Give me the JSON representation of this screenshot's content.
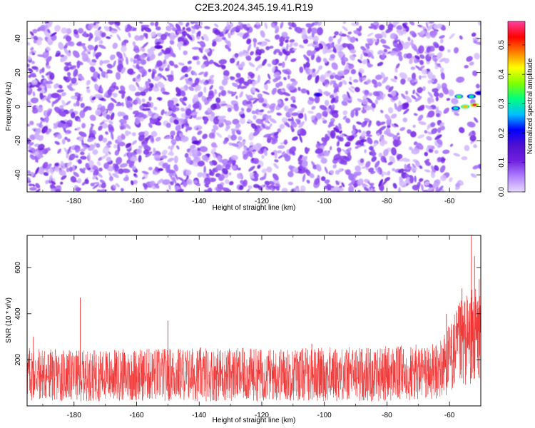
{
  "figure_title": "C2E3.2024.345.19.41.R19",
  "colors": {
    "spectrogram_background": "#ffffff",
    "snr_line": "#f03030",
    "axis": "#000000",
    "colorscale": [
      "#e8d8ff",
      "#b080ff",
      "#7020e0",
      "#5010d0",
      "#0000ff",
      "#00c0ff",
      "#00ff80",
      "#80ff00",
      "#ffff00",
      "#ff8000",
      "#ff0000",
      "#ff40a0"
    ]
  },
  "chart_data": [
    {
      "id": "spectrogram",
      "type": "heatmap",
      "title": "",
      "xlabel": "Height of straight line (km)",
      "ylabel": "Frequency (Hz)",
      "xlim": [
        -195,
        -50
      ],
      "ylim": [
        -50,
        50
      ],
      "xticks": [
        -180,
        -160,
        -140,
        -120,
        -100,
        -80,
        -60
      ],
      "yticks": [
        -40,
        -20,
        0,
        20,
        40
      ],
      "xtick_labels": [
        "-180",
        "-160",
        "-140",
        "-120",
        "-100",
        "-80",
        "-60"
      ],
      "ytick_labels": [
        "-40",
        "-20",
        "0",
        "20",
        "40"
      ],
      "colorbar": {
        "label": "Normalized spectral amplitude",
        "range": [
          0,
          0.58
        ],
        "ticks": [
          0.0,
          0.1,
          0.2,
          0.3,
          0.4,
          0.5
        ],
        "tick_labels": [
          "0.0",
          "0.1",
          "0.2",
          "0.3",
          "0.4",
          "0.5"
        ]
      },
      "noise_level_typical": 0.1,
      "strong_features": [
        {
          "x": -57,
          "y": 6,
          "value": 0.35
        },
        {
          "x": -53,
          "y": 6,
          "value": 0.3
        },
        {
          "x": -58,
          "y": -1,
          "value": 0.3
        },
        {
          "x": -55,
          "y": 0,
          "value": 0.45
        },
        {
          "x": -52,
          "y": 1,
          "value": 0.55
        },
        {
          "x": -50.5,
          "y": 8,
          "value": 0.2
        },
        {
          "x": -102,
          "y": 7,
          "value": 0.2
        },
        {
          "x": -153,
          "y": 35,
          "value": 0.15
        },
        {
          "x": -141,
          "y": -21,
          "value": 0.15
        }
      ]
    },
    {
      "id": "snr",
      "type": "line",
      "title": "",
      "xlabel": "Height of straight line (km)",
      "ylabel": "SNR (10 * v/v)",
      "xlim": [
        -195,
        -50
      ],
      "ylim": [
        0,
        740
      ],
      "xticks": [
        -180,
        -160,
        -140,
        -120,
        -100,
        -80,
        -60
      ],
      "yticks": [
        200,
        400,
        600
      ],
      "xtick_labels": [
        "-180",
        "-160",
        "-140",
        "-120",
        "-100",
        "-80",
        "-60"
      ],
      "ytick_labels": [
        "200",
        "400",
        "600"
      ],
      "baseline_mean": 120,
      "baseline_peak_typical": 230,
      "notable_peaks": [
        {
          "x": -193,
          "y": 300
        },
        {
          "x": -178,
          "y": 470
        },
        {
          "x": -150,
          "y": 370
        },
        {
          "x": -104,
          "y": 270
        },
        {
          "x": -61,
          "y": 400
        },
        {
          "x": -56,
          "y": 510
        },
        {
          "x": -53,
          "y": 740
        },
        {
          "x": -52,
          "y": 650
        },
        {
          "x": -50.5,
          "y": 550
        }
      ],
      "envelope": [
        {
          "x": -195,
          "y_max": 260
        },
        {
          "x": -180,
          "y_max": 240
        },
        {
          "x": -160,
          "y_max": 250
        },
        {
          "x": -140,
          "y_max": 255
        },
        {
          "x": -120,
          "y_max": 250
        },
        {
          "x": -100,
          "y_max": 255
        },
        {
          "x": -80,
          "y_max": 260
        },
        {
          "x": -64,
          "y_max": 270
        },
        {
          "x": -60,
          "y_max": 360
        },
        {
          "x": -56,
          "y_max": 470
        },
        {
          "x": -52,
          "y_max": 520
        },
        {
          "x": -50,
          "y_max": 480
        }
      ]
    }
  ]
}
